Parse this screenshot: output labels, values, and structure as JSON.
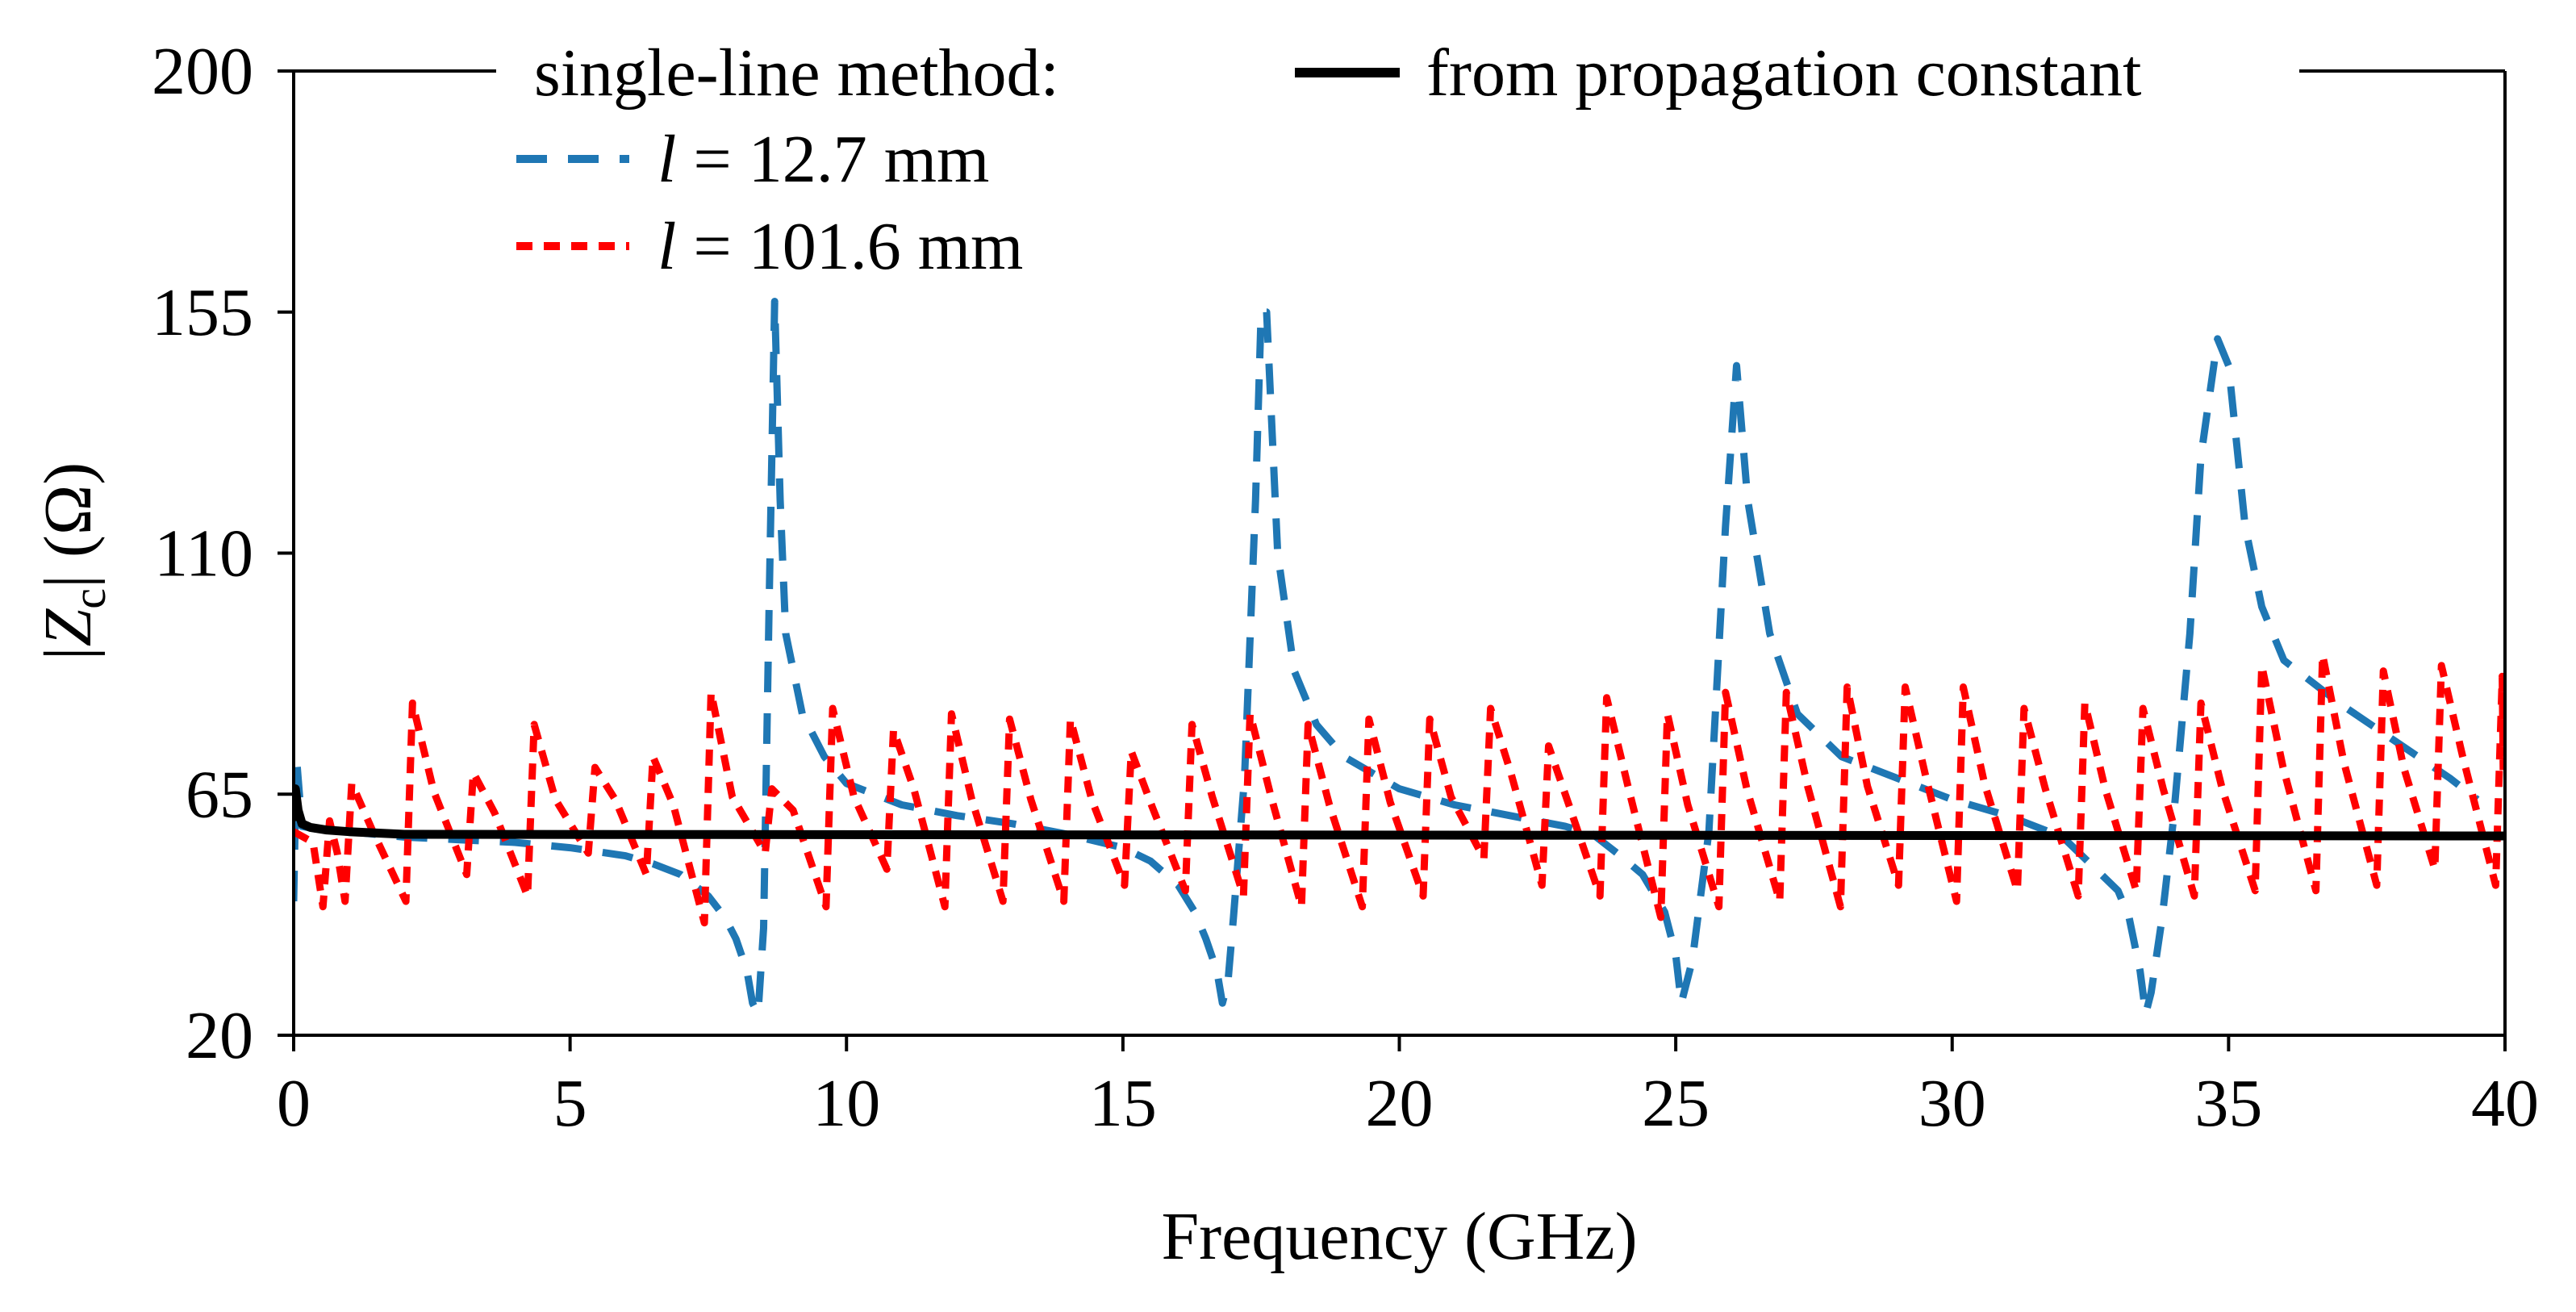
{
  "chart_data": {
    "type": "line",
    "title": "",
    "xlabel": "Frequency (GHz)",
    "ylabel": {
      "prefix": "|",
      "italic": "Z",
      "subscript": "c",
      "suffix": "| (Ω)"
    },
    "xlim": [
      0,
      40
    ],
    "ylim": [
      20,
      200
    ],
    "xticks": [
      0,
      5,
      10,
      15,
      20,
      25,
      30,
      35,
      40
    ],
    "yticks": [
      20,
      65,
      110,
      155,
      200
    ],
    "grid": false,
    "legend": {
      "placement": "top",
      "header": "single-line method:",
      "entries": [
        {
          "symbol": "l",
          "text": " = 12.7 mm"
        },
        {
          "symbol": "l",
          "text": " = 101.6 mm"
        },
        {
          "symbol": "",
          "text": "from propagation constant"
        }
      ]
    },
    "series": [
      {
        "name": "l = 12.7 mm",
        "color": "#1f77b4",
        "dash": "long",
        "x": [
          0,
          0.05,
          0.15,
          0.4,
          1,
          2,
          3,
          4,
          5,
          6,
          6.5,
          7,
          7.5,
          7.8,
          8,
          8.2,
          8.3,
          8.4,
          8.5,
          8.6,
          8.7,
          8.8,
          8.9,
          9.2,
          9.6,
          10,
          11,
          12,
          13,
          14,
          15,
          15.5,
          16,
          16.3,
          16.5,
          16.7,
          16.8,
          16.9,
          17,
          17.2,
          17.4,
          17.5,
          17.6,
          17.8,
          18.1,
          18.5,
          19,
          20,
          21,
          22,
          23,
          23.5,
          24,
          24.4,
          24.8,
          25,
          25.1,
          25.3,
          25.6,
          25.9,
          26.1,
          26.3,
          26.7,
          27.2,
          28,
          29,
          30,
          31,
          32,
          32.5,
          33,
          33.2,
          33.4,
          33.5,
          33.6,
          33.8,
          34,
          34.3,
          34.5,
          34.8,
          35,
          35.3,
          35.6,
          36,
          37,
          38,
          39,
          39.5
        ],
        "values": [
          45,
          72,
          59,
          58.5,
          58,
          57,
          56.5,
          56,
          55,
          53.5,
          52,
          50,
          46,
          42,
          38,
          32,
          26,
          24,
          40,
          100,
          157,
          120,
          95,
          80,
          72,
          67,
          63,
          61,
          59.5,
          57.5,
          55,
          52.5,
          48,
          43,
          38,
          32,
          26,
          30,
          42,
          68,
          120,
          155,
          155,
          110,
          88,
          78,
          72,
          66,
          63,
          61,
          59,
          57.5,
          53.5,
          50,
          43,
          35,
          26,
          34,
          58,
          115,
          145,
          120,
          95,
          80,
          72,
          68,
          64,
          61,
          57,
          52,
          47,
          42,
          32,
          24,
          28,
          42,
          60,
          95,
          128,
          150,
          145,
          115,
          100,
          90,
          82,
          75,
          68,
          64
        ]
      },
      {
        "name": "l = 101.6 mm",
        "color": "#ff0000",
        "dash": "short",
        "periodic": true,
        "peaks": [
          0.65,
          1.05,
          2.15,
          3.25,
          4.35,
          5.45,
          6.5,
          7.55,
          8.65,
          9.75,
          10.85,
          11.9,
          12.95,
          14.05,
          15.15,
          16.25,
          17.3,
          18.35,
          19.45,
          20.55,
          21.65,
          22.7,
          23.75,
          24.85,
          25.9,
          27.0,
          28.1,
          29.15,
          30.2,
          31.3,
          32.4,
          33.45,
          34.5,
          35.6,
          36.7,
          37.8,
          38.85,
          39.95
        ],
        "peak_values": [
          60,
          67,
          82,
          69,
          78,
          70,
          72,
          84,
          66,
          81,
          77,
          80,
          79,
          79,
          73,
          78,
          80,
          78,
          79,
          79,
          81,
          74,
          83,
          80,
          84,
          84,
          85,
          85,
          85,
          81,
          82,
          81,
          82,
          89,
          91,
          88,
          89,
          87
        ],
        "trough_values": [
          44,
          45,
          45,
          50,
          46,
          54,
          50,
          41,
          54,
          44,
          51,
          44,
          45,
          45,
          48,
          47,
          46,
          44,
          44,
          46,
          53,
          48,
          46,
          42,
          44,
          45,
          44,
          48,
          45,
          47,
          46,
          47,
          46,
          47,
          47,
          48,
          51,
          48
        ]
      },
      {
        "name": "from propagation constant",
        "color": "#000000",
        "dash": "solid",
        "x": [
          0,
          0.03,
          0.08,
          0.15,
          0.3,
          0.6,
          1,
          2,
          40
        ],
        "values": [
          60,
          66,
          62,
          59.5,
          58.8,
          58.3,
          58,
          57.5,
          57.2
        ]
      }
    ]
  }
}
